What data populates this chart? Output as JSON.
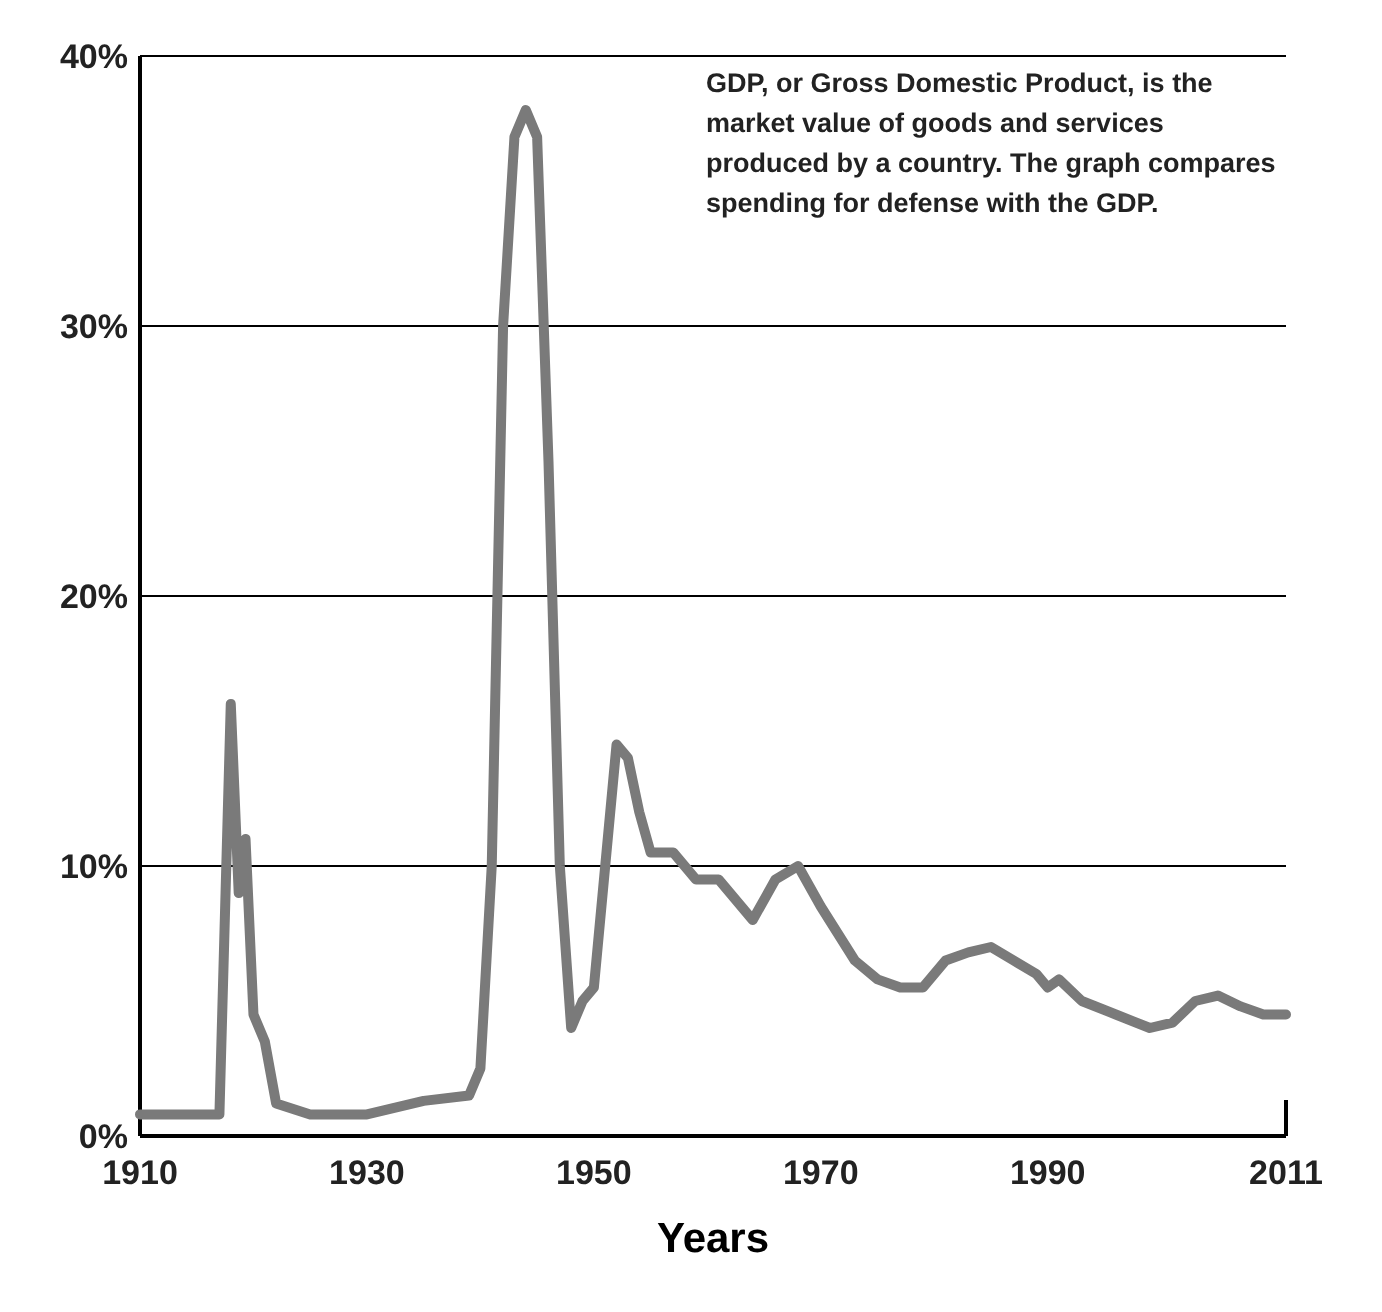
{
  "chart_data": {
    "type": "line",
    "xlabel": "Years",
    "annotations": [
      "GDP, or Gross Domestic Product, is the market value of goods and services produced by a country. The graph compares spending for defense with the GDP."
    ],
    "x": [
      1910,
      1916,
      1917,
      1918,
      1918.7,
      1919.3,
      1920,
      1921,
      1922,
      1925,
      1930,
      1935,
      1939,
      1940,
      1941,
      1942,
      1943,
      1944,
      1945,
      1946,
      1947,
      1948,
      1949,
      1950,
      1951,
      1952,
      1953,
      1954,
      1955,
      1957,
      1959,
      1961,
      1962,
      1964,
      1966,
      1968,
      1970,
      1973,
      1975,
      1977,
      1979,
      1981,
      1983,
      1985,
      1987,
      1989,
      1990,
      1991,
      1993,
      1996,
      1999,
      2001,
      2003,
      2005,
      2007,
      2009,
      2011
    ],
    "series": [
      {
        "color": "#7a7a7a",
        "values": [
          0.8,
          0.8,
          0.8,
          16,
          9,
          11,
          4.5,
          3.5,
          1.2,
          0.8,
          0.8,
          1.3,
          1.5,
          2.5,
          10,
          30,
          37,
          38,
          37,
          25,
          10,
          4,
          5,
          5.5,
          10,
          14.5,
          14,
          12,
          10.5,
          10.5,
          9.5,
          9.5,
          9,
          8,
          9.5,
          10,
          8.5,
          6.5,
          5.8,
          5.5,
          5.5,
          6.5,
          6.8,
          7,
          6.5,
          6,
          5.5,
          5.8,
          5,
          4.5,
          4,
          4.2,
          5,
          5.2,
          4.8,
          4.5,
          4.5
        ]
      }
    ],
    "xlim": [
      1910,
      2011
    ],
    "xticks": [
      1910,
      1930,
      1950,
      1970,
      1990,
      2011
    ],
    "ylim": [
      0,
      40
    ],
    "yticks": [
      {
        "value": 0,
        "label": "0%"
      },
      {
        "value": 10,
        "label": "10%"
      },
      {
        "value": 20,
        "label": "20%"
      },
      {
        "value": 30,
        "label": "30%"
      },
      {
        "value": 40,
        "label": "40%"
      }
    ],
    "grid": "y",
    "marker": "none",
    "line_style": "solid"
  }
}
